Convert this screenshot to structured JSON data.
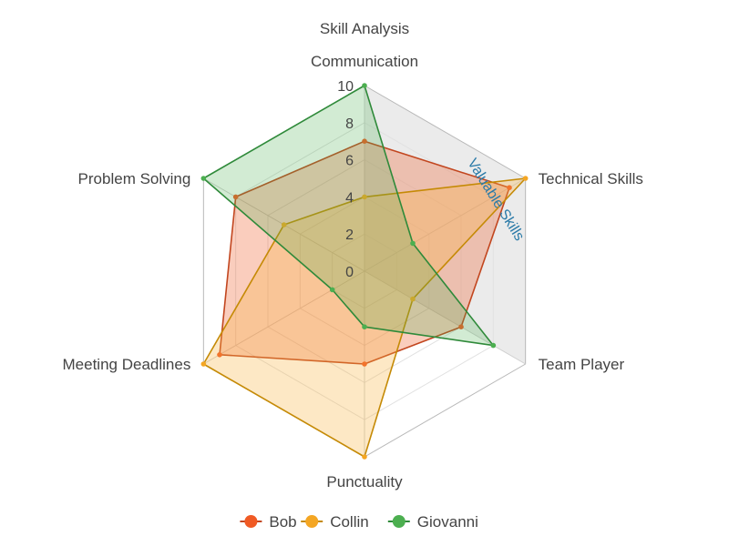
{
  "chart_data": {
    "type": "radar",
    "title": "Skill Analysis",
    "axes": [
      "Communication",
      "Technical Skills",
      "Team Player",
      "Punctuality",
      "Meeting Deadlines",
      "Problem Solving"
    ],
    "rlim": [
      0,
      10
    ],
    "ticks": [
      "0",
      "2",
      "4",
      "6",
      "8",
      "10"
    ],
    "grid": true,
    "legend_position": "bottom",
    "series": [
      {
        "name": "Bob",
        "values": [
          7,
          9,
          6,
          5,
          9,
          8
        ],
        "color": "#c2461f",
        "marker_color": "#f05a24",
        "fill": "rgba(240,90,36,0.30)"
      },
      {
        "name": "Collin",
        "values": [
          4,
          10,
          3,
          10,
          10,
          5
        ],
        "color": "#c58a06",
        "marker_color": "#f4a623",
        "fill": "rgba(247,178,64,0.30)"
      },
      {
        "name": "Giovanni",
        "values": [
          10,
          3,
          8,
          3,
          2,
          10
        ],
        "color": "#2f8a3a",
        "marker_color": "#4caf50",
        "fill": "rgba(76,175,80,0.25)"
      }
    ],
    "annotation": {
      "text": "Valuable Skills",
      "color": "#2a7aa8",
      "band_fill": "#e7e7e7",
      "spans_axes": [
        "Communication",
        "Technical Skills",
        "Team Player"
      ]
    }
  }
}
